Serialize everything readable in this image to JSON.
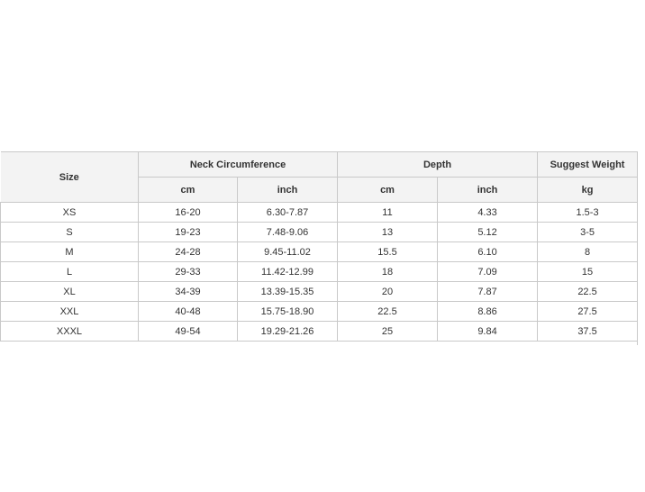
{
  "headers": {
    "size": "Size",
    "neck": "Neck Circumference",
    "depth": "Depth",
    "weight": "Suggest Weight",
    "units": [
      "cm",
      "inch",
      "cm",
      "inch",
      "kg"
    ]
  },
  "rows": [
    [
      "XS",
      "16-20",
      "6.30-7.87",
      "11",
      "4.33",
      "1.5-3"
    ],
    [
      "S",
      "19-23",
      "7.48-9.06",
      "13",
      "5.12",
      "3-5"
    ],
    [
      "M",
      "24-28",
      "9.45-11.02",
      "15.5",
      "6.10",
      "8"
    ],
    [
      "L",
      "29-33",
      "11.42-12.99",
      "18",
      "7.09",
      "15"
    ],
    [
      "XL",
      "34-39",
      "13.39-15.35",
      "20",
      "7.87",
      "22.5"
    ],
    [
      "XXL",
      "40-48",
      "15.75-18.90",
      "22.5",
      "8.86",
      "27.5"
    ],
    [
      "XXXL",
      "49-54",
      "19.29-21.26",
      "25",
      "9.84",
      "37.5"
    ]
  ]
}
